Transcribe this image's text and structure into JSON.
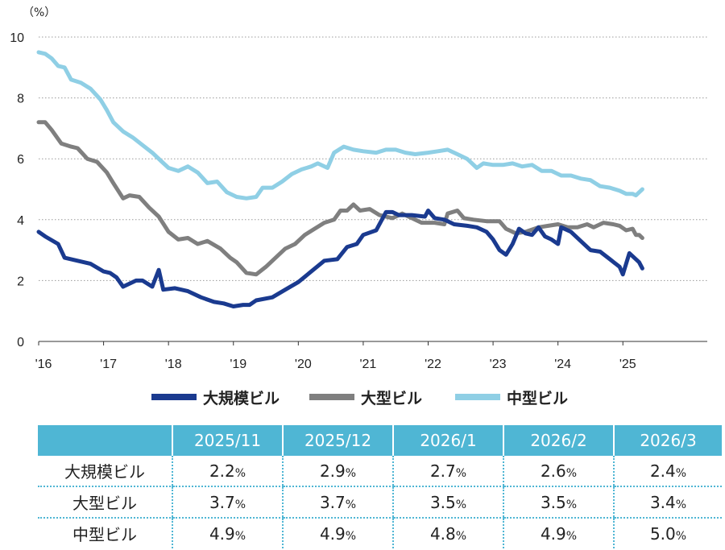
{
  "chart_data": {
    "type": "line",
    "y_unit": "（%）",
    "ylim": [
      0,
      10
    ],
    "y_ticks": [
      "0",
      "2",
      "4",
      "6",
      "8",
      "10"
    ],
    "x_ticks": [
      {
        "label": "'16",
        "x": 2016
      },
      {
        "label": "'17",
        "x": 2017
      },
      {
        "label": "'18",
        "x": 2018
      },
      {
        "label": "'19",
        "x": 2019
      },
      {
        "label": "'20",
        "x": 2020
      },
      {
        "label": "'21",
        "x": 2021
      },
      {
        "label": "'22",
        "x": 2022
      },
      {
        "label": "'23",
        "x": 2023
      },
      {
        "label": "'24",
        "x": 2024
      },
      {
        "label": "'25",
        "x": 2025
      }
    ],
    "xlim": [
      2016.0,
      2026.3
    ],
    "grid": "horizontal dotted",
    "legend_position": "bottom",
    "series": [
      {
        "name": "大規模ビル",
        "color": "#1a3a8f",
        "points": [
          [
            2016.0,
            3.6
          ],
          [
            2016.1,
            3.45
          ],
          [
            2016.3,
            3.2
          ],
          [
            2016.4,
            2.75
          ],
          [
            2016.6,
            2.65
          ],
          [
            2016.8,
            2.55
          ],
          [
            2017.0,
            2.3
          ],
          [
            2017.1,
            2.25
          ],
          [
            2017.2,
            2.1
          ],
          [
            2017.3,
            1.8
          ],
          [
            2017.5,
            2.0
          ],
          [
            2017.6,
            2.0
          ],
          [
            2017.75,
            1.8
          ],
          [
            2017.85,
            2.35
          ],
          [
            2017.92,
            1.7
          ],
          [
            2018.1,
            1.75
          ],
          [
            2018.3,
            1.65
          ],
          [
            2018.5,
            1.45
          ],
          [
            2018.7,
            1.3
          ],
          [
            2018.85,
            1.25
          ],
          [
            2019.0,
            1.15
          ],
          [
            2019.15,
            1.2
          ],
          [
            2019.25,
            1.2
          ],
          [
            2019.35,
            1.35
          ],
          [
            2019.6,
            1.45
          ],
          [
            2019.8,
            1.7
          ],
          [
            2020.0,
            1.95
          ],
          [
            2020.2,
            2.3
          ],
          [
            2020.4,
            2.65
          ],
          [
            2020.6,
            2.7
          ],
          [
            2020.75,
            3.1
          ],
          [
            2020.9,
            3.2
          ],
          [
            2021.0,
            3.5
          ],
          [
            2021.2,
            3.65
          ],
          [
            2021.35,
            4.25
          ],
          [
            2021.45,
            4.25
          ],
          [
            2021.55,
            4.15
          ],
          [
            2021.75,
            4.15
          ],
          [
            2021.95,
            4.1
          ],
          [
            2022.0,
            4.3
          ],
          [
            2022.1,
            4.05
          ],
          [
            2022.25,
            4.0
          ],
          [
            2022.4,
            3.85
          ],
          [
            2022.6,
            3.8
          ],
          [
            2022.75,
            3.75
          ],
          [
            2022.9,
            3.6
          ],
          [
            2023.0,
            3.35
          ],
          [
            2023.1,
            3.0
          ],
          [
            2023.2,
            2.85
          ],
          [
            2023.3,
            3.2
          ],
          [
            2023.4,
            3.7
          ],
          [
            2023.5,
            3.55
          ],
          [
            2023.6,
            3.5
          ],
          [
            2023.7,
            3.75
          ],
          [
            2023.8,
            3.45
          ],
          [
            2023.9,
            3.35
          ],
          [
            2024.0,
            3.2
          ],
          [
            2024.05,
            3.75
          ],
          [
            2024.2,
            3.6
          ],
          [
            2024.35,
            3.3
          ],
          [
            2024.5,
            3.0
          ],
          [
            2024.65,
            2.95
          ],
          [
            2024.8,
            2.7
          ],
          [
            2024.95,
            2.45
          ],
          [
            2025.0,
            2.2
          ],
          [
            2025.1,
            2.9
          ],
          [
            2025.2,
            2.7
          ],
          [
            2025.25,
            2.6
          ],
          [
            2025.3,
            2.4
          ]
        ]
      },
      {
        "name": "大型ビル",
        "color": "#7f7f7f",
        "points": [
          [
            2016.0,
            7.2
          ],
          [
            2016.1,
            7.2
          ],
          [
            2016.2,
            6.95
          ],
          [
            2016.35,
            6.5
          ],
          [
            2016.5,
            6.4
          ],
          [
            2016.6,
            6.35
          ],
          [
            2016.75,
            6.0
          ],
          [
            2016.9,
            5.9
          ],
          [
            2017.05,
            5.55
          ],
          [
            2017.15,
            5.2
          ],
          [
            2017.3,
            4.7
          ],
          [
            2017.4,
            4.8
          ],
          [
            2017.55,
            4.75
          ],
          [
            2017.7,
            4.4
          ],
          [
            2017.85,
            4.1
          ],
          [
            2018.0,
            3.6
          ],
          [
            2018.15,
            3.35
          ],
          [
            2018.3,
            3.4
          ],
          [
            2018.45,
            3.2
          ],
          [
            2018.6,
            3.3
          ],
          [
            2018.8,
            3.05
          ],
          [
            2018.95,
            2.75
          ],
          [
            2019.05,
            2.6
          ],
          [
            2019.2,
            2.25
          ],
          [
            2019.35,
            2.2
          ],
          [
            2019.5,
            2.45
          ],
          [
            2019.65,
            2.75
          ],
          [
            2019.8,
            3.05
          ],
          [
            2019.95,
            3.2
          ],
          [
            2020.1,
            3.5
          ],
          [
            2020.25,
            3.7
          ],
          [
            2020.4,
            3.9
          ],
          [
            2020.55,
            4.0
          ],
          [
            2020.65,
            4.3
          ],
          [
            2020.75,
            4.3
          ],
          [
            2020.85,
            4.5
          ],
          [
            2020.95,
            4.3
          ],
          [
            2021.1,
            4.35
          ],
          [
            2021.25,
            4.15
          ],
          [
            2021.45,
            4.05
          ],
          [
            2021.6,
            4.2
          ],
          [
            2021.75,
            4.05
          ],
          [
            2021.9,
            3.9
          ],
          [
            2022.1,
            3.9
          ],
          [
            2022.25,
            3.85
          ],
          [
            2022.3,
            4.2
          ],
          [
            2022.45,
            4.3
          ],
          [
            2022.55,
            4.05
          ],
          [
            2022.7,
            4.0
          ],
          [
            2022.9,
            3.95
          ],
          [
            2023.1,
            3.95
          ],
          [
            2023.2,
            3.7
          ],
          [
            2023.35,
            3.55
          ],
          [
            2023.5,
            3.6
          ],
          [
            2023.7,
            3.75
          ],
          [
            2023.85,
            3.8
          ],
          [
            2024.0,
            3.85
          ],
          [
            2024.15,
            3.75
          ],
          [
            2024.3,
            3.75
          ],
          [
            2024.45,
            3.85
          ],
          [
            2024.55,
            3.75
          ],
          [
            2024.7,
            3.9
          ],
          [
            2024.85,
            3.85
          ],
          [
            2024.95,
            3.8
          ],
          [
            2025.05,
            3.65
          ],
          [
            2025.15,
            3.7
          ],
          [
            2025.2,
            3.5
          ],
          [
            2025.25,
            3.5
          ],
          [
            2025.3,
            3.4
          ]
        ]
      },
      {
        "name": "中型ビル",
        "color": "#8fcfe5",
        "points": [
          [
            2016.0,
            9.5
          ],
          [
            2016.1,
            9.45
          ],
          [
            2016.2,
            9.3
          ],
          [
            2016.3,
            9.05
          ],
          [
            2016.4,
            9.0
          ],
          [
            2016.5,
            8.6
          ],
          [
            2016.65,
            8.5
          ],
          [
            2016.8,
            8.3
          ],
          [
            2016.95,
            7.95
          ],
          [
            2017.05,
            7.6
          ],
          [
            2017.15,
            7.2
          ],
          [
            2017.3,
            6.9
          ],
          [
            2017.45,
            6.7
          ],
          [
            2017.6,
            6.45
          ],
          [
            2017.75,
            6.2
          ],
          [
            2017.9,
            5.9
          ],
          [
            2018.0,
            5.7
          ],
          [
            2018.15,
            5.6
          ],
          [
            2018.3,
            5.75
          ],
          [
            2018.45,
            5.55
          ],
          [
            2018.6,
            5.2
          ],
          [
            2018.75,
            5.25
          ],
          [
            2018.9,
            4.9
          ],
          [
            2019.05,
            4.75
          ],
          [
            2019.2,
            4.7
          ],
          [
            2019.35,
            4.75
          ],
          [
            2019.45,
            5.05
          ],
          [
            2019.6,
            5.05
          ],
          [
            2019.75,
            5.25
          ],
          [
            2019.9,
            5.5
          ],
          [
            2020.05,
            5.65
          ],
          [
            2020.2,
            5.75
          ],
          [
            2020.3,
            5.85
          ],
          [
            2020.45,
            5.7
          ],
          [
            2020.55,
            6.2
          ],
          [
            2020.7,
            6.4
          ],
          [
            2020.85,
            6.3
          ],
          [
            2021.0,
            6.25
          ],
          [
            2021.2,
            6.2
          ],
          [
            2021.35,
            6.3
          ],
          [
            2021.5,
            6.3
          ],
          [
            2021.65,
            6.2
          ],
          [
            2021.8,
            6.15
          ],
          [
            2022.0,
            6.2
          ],
          [
            2022.15,
            6.25
          ],
          [
            2022.3,
            6.3
          ],
          [
            2022.45,
            6.15
          ],
          [
            2022.6,
            6.0
          ],
          [
            2022.75,
            5.7
          ],
          [
            2022.85,
            5.85
          ],
          [
            2023.0,
            5.8
          ],
          [
            2023.15,
            5.8
          ],
          [
            2023.3,
            5.85
          ],
          [
            2023.45,
            5.75
          ],
          [
            2023.6,
            5.8
          ],
          [
            2023.75,
            5.6
          ],
          [
            2023.9,
            5.6
          ],
          [
            2024.05,
            5.45
          ],
          [
            2024.2,
            5.45
          ],
          [
            2024.35,
            5.35
          ],
          [
            2024.5,
            5.3
          ],
          [
            2024.65,
            5.1
          ],
          [
            2024.8,
            5.05
          ],
          [
            2024.95,
            4.95
          ],
          [
            2025.05,
            4.85
          ],
          [
            2025.15,
            4.85
          ],
          [
            2025.2,
            4.8
          ],
          [
            2025.25,
            4.9
          ],
          [
            2025.3,
            5.0
          ]
        ]
      }
    ]
  },
  "table": {
    "headers": [
      "",
      "2025/11",
      "2025/12",
      "2026/1",
      "2026/2",
      "2026/3"
    ],
    "rows": [
      {
        "label": "大規模ビル",
        "values": [
          "2.2",
          "2.9",
          "2.7",
          "2.6",
          "2.4"
        ]
      },
      {
        "label": "大型ビル",
        "values": [
          "3.7",
          "3.7",
          "3.5",
          "3.5",
          "3.4"
        ]
      },
      {
        "label": "中型ビル",
        "values": [
          "4.9",
          "4.9",
          "4.8",
          "4.9",
          "5.0"
        ]
      }
    ],
    "unit": "%"
  }
}
